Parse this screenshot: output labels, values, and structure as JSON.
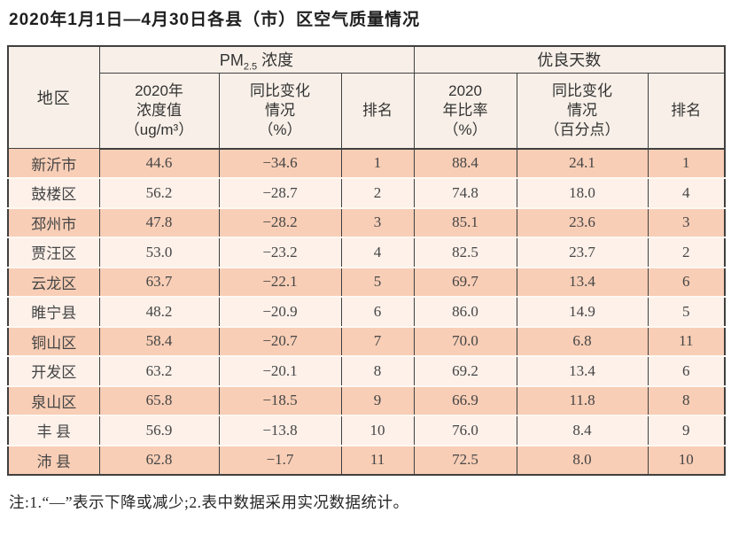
{
  "page": {
    "title": "2020年1月1日—4月30日各县（市）区空气质量情况",
    "note": "注:1.“—”表示下降或减少;2.表中数据采用实况数据统计。"
  },
  "theme": {
    "row_dark": "#f8ceb6",
    "row_light": "#fdf1ea",
    "header_bg": "#f8f0e8",
    "border": "#404040",
    "separator": "#fdf8f3"
  },
  "table": {
    "header": {
      "region": "地区",
      "pm_group": {
        "prefix": "PM",
        "sub": "2.5",
        "suffix": " 浓度"
      },
      "good_group": "优良天数",
      "pm_value": "2020年\n浓度值\n（ug/m³）",
      "pm_change": "同比变化\n情况\n（%）",
      "pm_rank": "排名",
      "good_ratio": "2020\n年比率\n（%）",
      "good_change": "同比变化\n情况\n（百分点）",
      "good_rank": "排名"
    },
    "rows": [
      {
        "region": "新沂市",
        "pm_value": "44.6",
        "pm_change": "−34.6",
        "pm_rank": "1",
        "good_ratio": "88.4",
        "good_change": "24.1",
        "good_rank": "1"
      },
      {
        "region": "鼓楼区",
        "pm_value": "56.2",
        "pm_change": "−28.7",
        "pm_rank": "2",
        "good_ratio": "74.8",
        "good_change": "18.0",
        "good_rank": "4"
      },
      {
        "region": "邳州市",
        "pm_value": "47.8",
        "pm_change": "−28.2",
        "pm_rank": "3",
        "good_ratio": "85.1",
        "good_change": "23.6",
        "good_rank": "3"
      },
      {
        "region": "贾汪区",
        "pm_value": "53.0",
        "pm_change": "−23.2",
        "pm_rank": "4",
        "good_ratio": "82.5",
        "good_change": "23.7",
        "good_rank": "2"
      },
      {
        "region": "云龙区",
        "pm_value": "63.7",
        "pm_change": "−22.1",
        "pm_rank": "5",
        "good_ratio": "69.7",
        "good_change": "13.4",
        "good_rank": "6"
      },
      {
        "region": "睢宁县",
        "pm_value": "48.2",
        "pm_change": "−20.9",
        "pm_rank": "6",
        "good_ratio": "86.0",
        "good_change": "14.9",
        "good_rank": "5"
      },
      {
        "region": "铜山区",
        "pm_value": "58.4",
        "pm_change": "−20.7",
        "pm_rank": "7",
        "good_ratio": "70.0",
        "good_change": "6.8",
        "good_rank": "11"
      },
      {
        "region": "开发区",
        "pm_value": "63.2",
        "pm_change": "−20.1",
        "pm_rank": "8",
        "good_ratio": "69.2",
        "good_change": "13.4",
        "good_rank": "6"
      },
      {
        "region": "泉山区",
        "pm_value": "65.8",
        "pm_change": "−18.5",
        "pm_rank": "9",
        "good_ratio": "66.9",
        "good_change": "11.8",
        "good_rank": "8"
      },
      {
        "region": "丰 县",
        "pm_value": "56.9",
        "pm_change": "−13.8",
        "pm_rank": "10",
        "good_ratio": "76.0",
        "good_change": "8.4",
        "good_rank": "9"
      },
      {
        "region": "沛 县",
        "pm_value": "62.8",
        "pm_change": "−1.7",
        "pm_rank": "11",
        "good_ratio": "72.5",
        "good_change": "8.0",
        "good_rank": "10"
      }
    ]
  }
}
